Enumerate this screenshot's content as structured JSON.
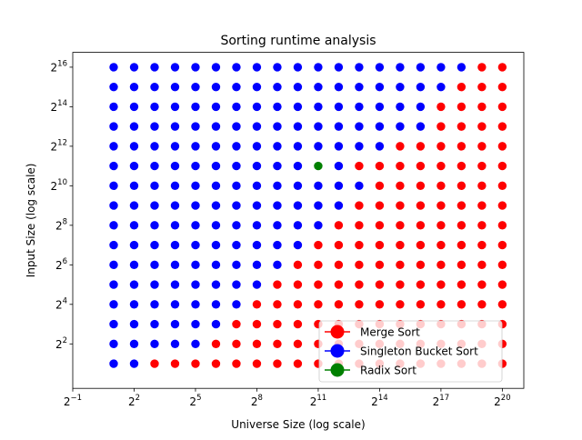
{
  "chart_data": {
    "type": "scatter",
    "title": "Sorting runtime analysis",
    "xlabel": "Universe Size (log scale)",
    "ylabel": "Input Size (log scale)",
    "x_scale": "log2",
    "y_scale": "log2",
    "xlim_log2": [
      -1,
      21.05
    ],
    "ylim_log2": [
      -0.25,
      16.75
    ],
    "x_ticks": [
      {
        "base": "2",
        "exp": "−1",
        "value_log2": -1
      },
      {
        "base": "2",
        "exp": "2",
        "value_log2": 2
      },
      {
        "base": "2",
        "exp": "5",
        "value_log2": 5
      },
      {
        "base": "2",
        "exp": "8",
        "value_log2": 8
      },
      {
        "base": "2",
        "exp": "11",
        "value_log2": 11
      },
      {
        "base": "2",
        "exp": "14",
        "value_log2": 14
      },
      {
        "base": "2",
        "exp": "17",
        "value_log2": 17
      },
      {
        "base": "2",
        "exp": "20",
        "value_log2": 20
      }
    ],
    "y_ticks": [
      {
        "base": "2",
        "exp": "2",
        "value_log2": 2
      },
      {
        "base": "2",
        "exp": "4",
        "value_log2": 4
      },
      {
        "base": "2",
        "exp": "6",
        "value_log2": 6
      },
      {
        "base": "2",
        "exp": "8",
        "value_log2": 8
      },
      {
        "base": "2",
        "exp": "10",
        "value_log2": 10
      },
      {
        "base": "2",
        "exp": "12",
        "value_log2": 12
      },
      {
        "base": "2",
        "exp": "14",
        "value_log2": 14
      },
      {
        "base": "2",
        "exp": "16",
        "value_log2": 16
      }
    ],
    "x_log2_values": [
      1,
      2,
      3,
      4,
      5,
      6,
      7,
      8,
      9,
      10,
      11,
      12,
      13,
      14,
      15,
      16,
      17,
      18,
      19,
      20
    ],
    "y_log2_values": [
      1,
      2,
      3,
      4,
      5,
      6,
      7,
      8,
      9,
      10,
      11,
      12,
      13,
      14,
      15,
      16
    ],
    "series": [
      {
        "name": "Merge Sort",
        "key": "M",
        "color": "#ff0000"
      },
      {
        "name": "Singleton Bucket Sort",
        "key": "S",
        "color": "#0000ff"
      },
      {
        "name": "Radix Sort",
        "key": "R",
        "color": "#008000"
      }
    ],
    "grid_rows_top_to_bottom": [
      {
        "y_log2": 16,
        "row": "SSSSSSSSSSSSSSSSSSMM"
      },
      {
        "y_log2": 15,
        "row": "SSSSSSSSSSSSSSSSSMMM"
      },
      {
        "y_log2": 14,
        "row": "SSSSSSSSSSSSSSSSMMMM"
      },
      {
        "y_log2": 13,
        "row": "SSSSSSSSSSSSSSSSMMMM"
      },
      {
        "y_log2": 12,
        "row": "SSSSSSSSSSSSSSMMMMMM"
      },
      {
        "y_log2": 11,
        "row": "SSSSSSSSSSRSMMMMMMMM"
      },
      {
        "y_log2": 10,
        "row": "SSSSSSSSSSSSSMMMMMMM"
      },
      {
        "y_log2": 9,
        "row": "SSSSSSSSSSSSMMMMMMMM"
      },
      {
        "y_log2": 8,
        "row": "SSSSSSSSSSSMMMMMMMMM"
      },
      {
        "y_log2": 7,
        "row": "SSSSSSSSSSMMMMMMMMMM"
      },
      {
        "y_log2": 6,
        "row": "SSSSSSSSSMMMMMMMMMMM"
      },
      {
        "y_log2": 5,
        "row": "SSSSSSSSMMMMMMMMMMMM"
      },
      {
        "y_log2": 4,
        "row": "SSSSSSSMMMMMMMMMMMMM"
      },
      {
        "y_log2": 3,
        "row": "SSSSSSMMMMMMMMMMMMMM"
      },
      {
        "y_log2": 2,
        "row": "SSSSSMMMMMMMMMMMMMMM"
      },
      {
        "y_log2": 1,
        "row": "SSMMMMMMMMMMMMMMMMMM"
      }
    ],
    "legend_position": "lower-right",
    "grid": false
  }
}
